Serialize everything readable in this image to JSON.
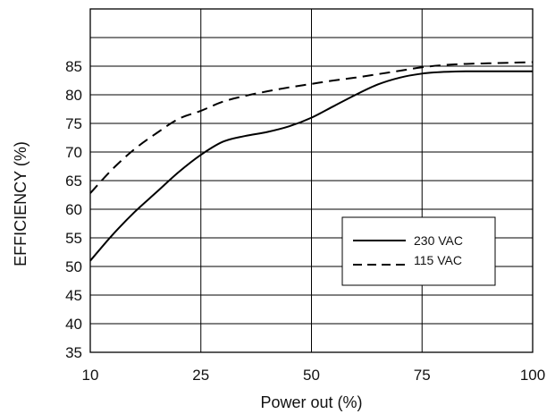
{
  "chart_data": {
    "type": "line",
    "title": "",
    "xlabel": "Power out (%)",
    "ylabel": "EFFICIENCY (%)",
    "x_ticks": [
      "10",
      "25",
      "50",
      "75",
      "100"
    ],
    "x_tick_values": [
      10,
      25,
      50,
      75,
      100
    ],
    "y_ticks": [
      "35",
      "40",
      "45",
      "50",
      "55",
      "60",
      "65",
      "70",
      "75",
      "80",
      "85"
    ],
    "y_tick_values": [
      35,
      40,
      45,
      50,
      55,
      60,
      65,
      70,
      75,
      80,
      85
    ],
    "ylim": [
      35,
      95
    ],
    "grid": true,
    "legend_position": "center-right",
    "series": [
      {
        "name": "230 VAC",
        "style": "solid",
        "color": "#000000",
        "x": [
          10,
          13,
          16,
          19,
          22,
          25,
          30,
          35,
          40,
          45,
          50,
          55,
          60,
          65,
          70,
          75,
          80,
          85,
          90,
          95,
          100
        ],
        "y": [
          51,
          55.5,
          59.5,
          63,
          66.5,
          69.5,
          71.8,
          72.8,
          73.5,
          74.5,
          76,
          78,
          80,
          81.8,
          83,
          83.7,
          84,
          84.1,
          84.1,
          84.1,
          84.1
        ]
      },
      {
        "name": "115 VAC",
        "style": "dashed",
        "color": "#000000",
        "x": [
          10,
          13,
          16,
          19,
          22,
          25,
          30,
          35,
          40,
          45,
          50,
          55,
          60,
          65,
          70,
          75,
          80,
          85,
          90,
          95,
          100
        ],
        "y": [
          62.8,
          67,
          70.5,
          73.3,
          75.8,
          77.2,
          78.8,
          79.8,
          80.6,
          81.3,
          81.9,
          82.5,
          83,
          83.6,
          84.2,
          84.8,
          85.2,
          85.4,
          85.5,
          85.6,
          85.7
        ]
      }
    ]
  }
}
